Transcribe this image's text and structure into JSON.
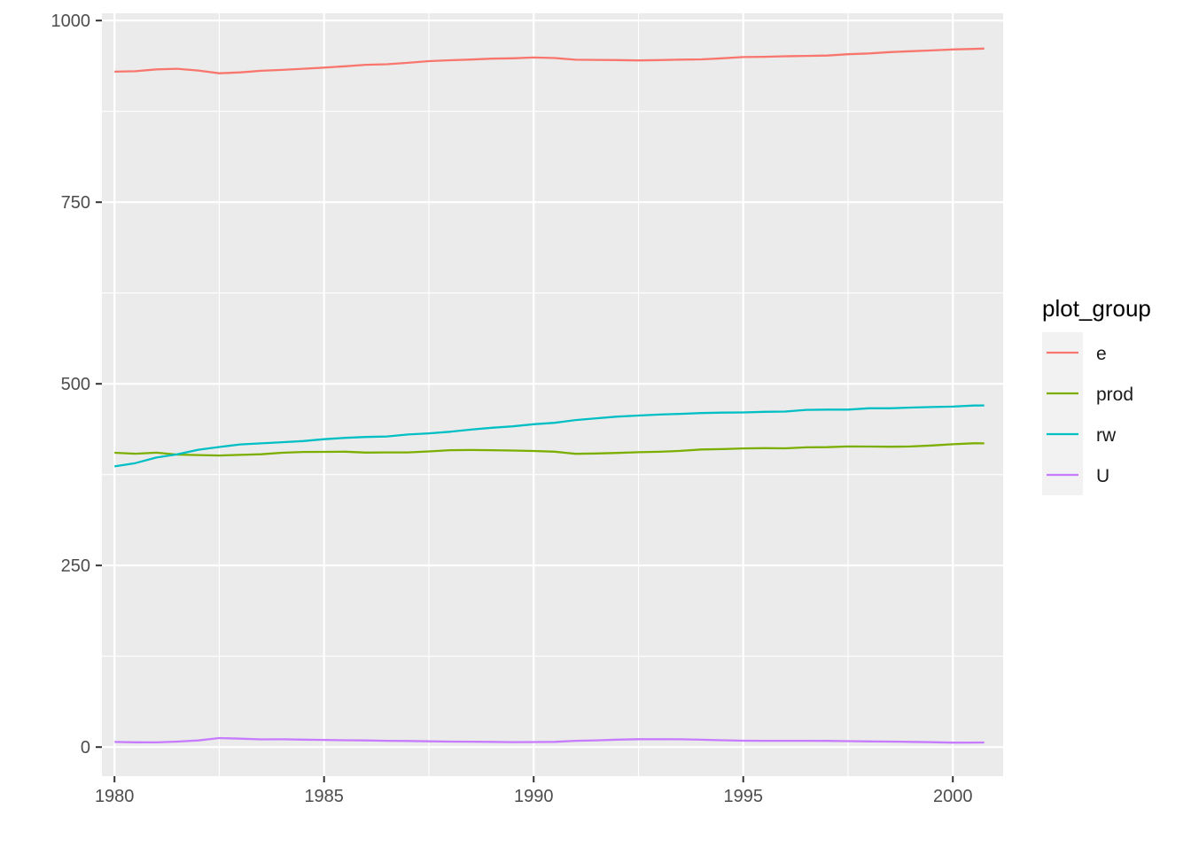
{
  "chart_data": {
    "type": "line",
    "title": "",
    "xlabel": "",
    "ylabel": "",
    "xlim": [
      1979.7,
      2001.2
    ],
    "ylim": [
      -40,
      1010
    ],
    "x_ticks": [
      1980,
      1985,
      1990,
      1995,
      2000
    ],
    "y_ticks": [
      0,
      250,
      500,
      750,
      1000
    ],
    "grid": true,
    "legend": {
      "title": "plot_group",
      "position": "right"
    },
    "x": [
      1980.0,
      1980.5,
      1981.0,
      1981.5,
      1982.0,
      1982.5,
      1983.0,
      1983.5,
      1984.0,
      1984.5,
      1985.0,
      1985.5,
      1986.0,
      1986.5,
      1987.0,
      1987.5,
      1988.0,
      1988.5,
      1989.0,
      1989.5,
      1990.0,
      1990.5,
      1991.0,
      1991.5,
      1992.0,
      1992.5,
      1993.0,
      1993.5,
      1994.0,
      1994.5,
      1995.0,
      1995.5,
      1996.0,
      1996.5,
      1997.0,
      1997.5,
      1998.0,
      1998.5,
      1999.0,
      1999.5,
      2000.0,
      2000.5,
      2000.75
    ],
    "series": [
      {
        "name": "e",
        "color": "#F8766D",
        "values": [
          929.6,
          930.2,
          932.8,
          933.6,
          931.2,
          927.4,
          928.6,
          930.9,
          932.1,
          933.6,
          935.2,
          937.1,
          939.1,
          939.9,
          941.8,
          944.1,
          945.4,
          946.4,
          947.6,
          948.1,
          949.1,
          948.4,
          946.1,
          945.8,
          945.6,
          945.1,
          945.6,
          946.2,
          946.6,
          948.0,
          949.8,
          950.1,
          950.9,
          951.3,
          951.8,
          953.6,
          954.8,
          956.6,
          957.8,
          958.9,
          960.2,
          961.0,
          961.5
        ]
      },
      {
        "name": "prod",
        "color": "#7CAE00",
        "values": [
          405.1,
          403.8,
          405.3,
          402.6,
          401.9,
          401.4,
          402.2,
          403.1,
          405.1,
          406.2,
          406.4,
          406.6,
          405.4,
          405.6,
          405.6,
          406.9,
          408.6,
          408.9,
          408.7,
          408.2,
          407.6,
          406.6,
          403.6,
          404.1,
          404.9,
          405.9,
          406.5,
          407.7,
          409.6,
          410.1,
          411.1,
          411.5,
          411.2,
          412.6,
          412.8,
          413.8,
          413.7,
          413.4,
          413.8,
          415.1,
          416.8,
          418.2,
          418.0
        ]
      },
      {
        "name": "rw",
        "color": "#00BFC4",
        "values": [
          386.3,
          390.9,
          398.5,
          403.1,
          409.3,
          413.1,
          416.6,
          418.1,
          419.6,
          421.2,
          423.8,
          425.6,
          426.8,
          427.6,
          430.3,
          431.8,
          434.0,
          437.0,
          439.5,
          441.5,
          444.4,
          446.4,
          450.1,
          452.6,
          454.9,
          456.3,
          457.7,
          458.6,
          459.7,
          460.4,
          460.6,
          461.5,
          461.8,
          464.1,
          464.5,
          464.5,
          466.3,
          466.3,
          467.3,
          468.1,
          468.7,
          470.1,
          470.3
        ]
      },
      {
        "name": "U",
        "color": "#C77CFF",
        "values": [
          7.1,
          6.6,
          6.5,
          7.5,
          9.1,
          12.4,
          11.6,
          10.6,
          10.7,
          10.3,
          9.9,
          9.4,
          9.2,
          8.6,
          8.4,
          7.9,
          7.5,
          7.4,
          7.2,
          6.8,
          6.9,
          7.2,
          8.6,
          9.3,
          10.2,
          10.8,
          10.9,
          10.7,
          10.1,
          9.4,
          8.8,
          8.7,
          8.6,
          8.7,
          8.5,
          8.2,
          7.8,
          7.6,
          7.2,
          6.7,
          6.1,
          6.2,
          6.3
        ]
      }
    ]
  }
}
